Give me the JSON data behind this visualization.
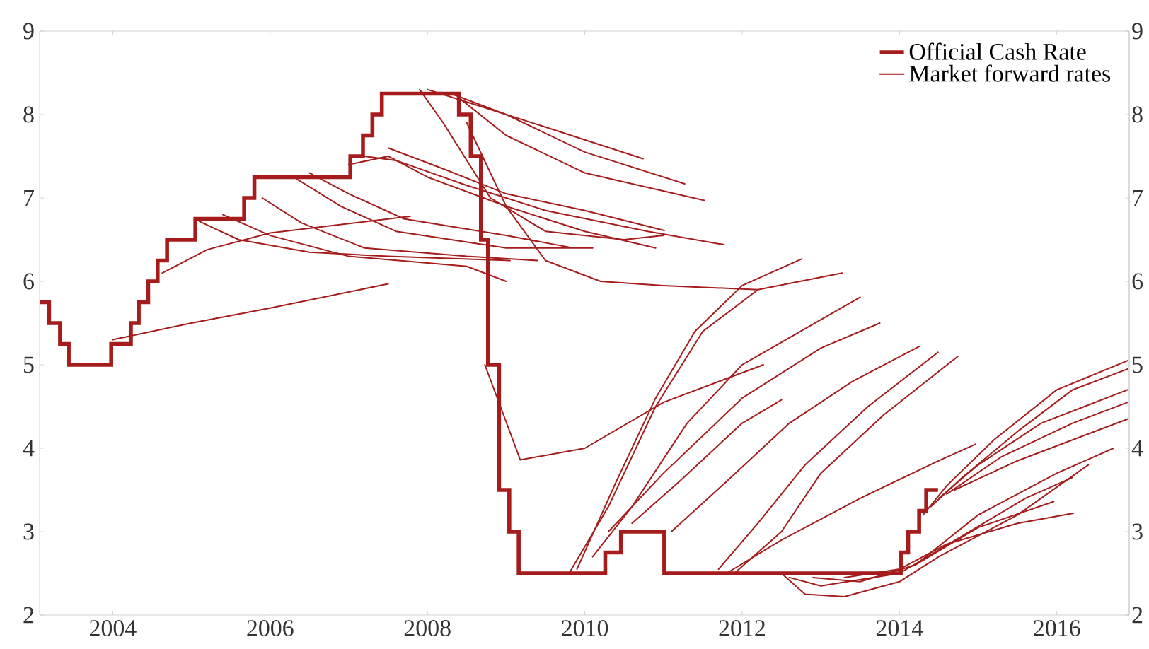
{
  "chart_data": {
    "type": "line",
    "xlim": [
      2003.07,
      2016.92
    ],
    "xticks": [
      2004,
      2006,
      2008,
      2010,
      2012,
      2014,
      2016
    ],
    "ylim": [
      2,
      9
    ],
    "yticks": [
      2,
      3,
      4,
      5,
      6,
      7,
      8,
      9
    ],
    "y2lim": [
      2,
      9
    ],
    "y2ticks": [
      2,
      3,
      4,
      5,
      6,
      7,
      8,
      9
    ],
    "legend": "top right",
    "series": [
      {
        "name": "Official Cash Rate",
        "type": "step",
        "color": "#a51c1c",
        "x": [
          2003.07,
          2003.19,
          2003.33,
          2003.44,
          2003.98,
          2004.23,
          2004.33,
          2004.45,
          2004.57,
          2004.69,
          2005.05,
          2005.67,
          2005.8,
          2007.02,
          2007.18,
          2007.3,
          2007.42,
          2008.4,
          2008.55,
          2008.68,
          2008.77,
          2008.91,
          2009.04,
          2009.16,
          2010.26,
          2010.46,
          2011.01,
          2014.02,
          2014.11,
          2014.25,
          2014.34,
          2014.49
        ],
        "values": [
          5.75,
          5.5,
          5.25,
          5.0,
          5.25,
          5.5,
          5.75,
          6.0,
          6.25,
          6.5,
          6.75,
          7.0,
          7.25,
          7.5,
          7.75,
          8.0,
          8.25,
          8.0,
          7.5,
          6.5,
          5.0,
          3.5,
          3.0,
          2.5,
          2.75,
          3.0,
          2.5,
          2.75,
          3.0,
          3.25,
          3.5,
          3.5
        ]
      },
      {
        "name": "Market forward rates",
        "color": "#a51c1c",
        "x": [
          2004.0,
          2005.0,
          2006.0,
          2007.5
        ],
        "values": [
          5.3,
          5.5,
          5.68,
          5.97
        ]
      },
      {
        "color": "#a51c1c",
        "x": [
          2004.63,
          2005.2,
          2006.0,
          2007.78
        ],
        "values": [
          6.1,
          6.38,
          6.58,
          6.78
        ]
      },
      {
        "color": "#a51c1c",
        "x": [
          2005.1,
          2005.6,
          2006.5,
          2007.5,
          2009.05
        ],
        "values": [
          6.72,
          6.5,
          6.35,
          6.3,
          6.25
        ]
      },
      {
        "color": "#a51c1c",
        "x": [
          2005.4,
          2006.0,
          2007.0,
          2008.5,
          2009.0
        ],
        "values": [
          6.8,
          6.55,
          6.3,
          6.18,
          6.0
        ]
      },
      {
        "color": "#a51c1c",
        "x": [
          2005.9,
          2006.4,
          2007.2,
          2008.5,
          2009.4
        ],
        "values": [
          7.0,
          6.7,
          6.4,
          6.3,
          6.25
        ]
      },
      {
        "color": "#a51c1c",
        "x": [
          2006.3,
          2006.9,
          2007.6,
          2009.0,
          2010.1
        ],
        "values": [
          7.25,
          6.9,
          6.6,
          6.4,
          6.4
        ]
      },
      {
        "color": "#a51c1c",
        "x": [
          2006.5,
          2007.0,
          2007.7,
          2009.0,
          2009.8
        ],
        "values": [
          7.3,
          7.05,
          6.75,
          6.55,
          6.41
        ]
      },
      {
        "color": "#a51c1c",
        "x": [
          2007.0,
          2007.5,
          2008.0,
          2009.0,
          2010.0,
          2010.9
        ],
        "values": [
          7.4,
          7.5,
          7.25,
          6.9,
          6.6,
          6.4
        ]
      },
      {
        "color": "#a51c1c",
        "x": [
          2007.2,
          2007.6,
          2008.5,
          2009.5,
          2010.8,
          2011.77
        ],
        "values": [
          7.5,
          7.45,
          7.15,
          6.85,
          6.6,
          6.44
        ]
      },
      {
        "color": "#a51c1c",
        "x": [
          2007.5,
          2008.2,
          2009.0,
          2010.0,
          2011.01
        ],
        "values": [
          7.6,
          7.35,
          7.05,
          6.85,
          6.61
        ]
      },
      {
        "color": "#a51c1c",
        "x": [
          2007.9,
          2008.2,
          2008.8,
          2009.5,
          2010.5,
          2011.0
        ],
        "values": [
          8.3,
          7.9,
          7.0,
          6.6,
          6.5,
          6.55
        ]
      },
      {
        "color": "#a51c1c",
        "x": [
          2008.0,
          2008.5,
          2009.5,
          2010.74
        ],
        "values": [
          8.3,
          8.15,
          7.85,
          7.47
        ]
      },
      {
        "color": "#a51c1c",
        "x": [
          2008.3,
          2009.0,
          2010.0,
          2011.27
        ],
        "values": [
          8.25,
          8.0,
          7.55,
          7.17
        ]
      },
      {
        "color": "#a51c1c",
        "x": [
          2008.4,
          2009.0,
          2010.0,
          2011.52
        ],
        "values": [
          8.2,
          7.75,
          7.3,
          6.97
        ]
      },
      {
        "color": "#a51c1c",
        "x": [
          2008.5,
          2009.0,
          2009.5,
          2010.2,
          2011.0,
          2012.2
        ],
        "values": [
          7.9,
          6.9,
          6.25,
          6.0,
          5.95,
          5.9
        ]
      },
      {
        "color": "#a51c1c",
        "x": [
          2008.73,
          2009.18,
          2010.0,
          2011.0,
          2012.27
        ],
        "values": [
          5.0,
          3.86,
          4.0,
          4.55,
          5.0
        ]
      },
      {
        "color": "#a51c1c",
        "x": [
          2009.9,
          2010.4,
          2010.9,
          2011.4,
          2012.0,
          2012.76
        ],
        "values": [
          2.55,
          3.6,
          4.6,
          5.4,
          5.95,
          6.27
        ]
      },
      {
        "color": "#a51c1c",
        "x": [
          2009.8,
          2010.3,
          2010.9,
          2011.5,
          2012.2,
          2013.27
        ],
        "values": [
          2.5,
          3.3,
          4.5,
          5.4,
          5.9,
          6.1
        ]
      },
      {
        "color": "#a51c1c",
        "x": [
          2010.1,
          2010.6,
          2011.3,
          2012.0,
          2013.5
        ],
        "values": [
          2.7,
          3.3,
          4.3,
          5.0,
          5.81
        ]
      },
      {
        "color": "#a51c1c",
        "x": [
          2010.3,
          2011.0,
          2012.0,
          2013.0,
          2013.75
        ],
        "values": [
          3.0,
          3.7,
          4.6,
          5.2,
          5.5
        ]
      },
      {
        "color": "#a51c1c",
        "x": [
          2010.6,
          2011.2,
          2012.0,
          2012.5
        ],
        "values": [
          3.1,
          3.6,
          4.3,
          4.58
        ]
      },
      {
        "color": "#a51c1c",
        "x": [
          2011.1,
          2011.8,
          2012.6,
          2013.4,
          2014.25
        ],
        "values": [
          3.0,
          3.6,
          4.3,
          4.8,
          5.22
        ]
      },
      {
        "color": "#a51c1c",
        "x": [
          2011.7,
          2012.2,
          2012.8,
          2013.6,
          2014.49
        ],
        "values": [
          2.55,
          3.1,
          3.8,
          4.5,
          5.15
        ]
      },
      {
        "color": "#a51c1c",
        "x": [
          2011.9,
          2012.5,
          2013.0,
          2013.8,
          2014.74
        ],
        "values": [
          2.5,
          3.0,
          3.7,
          4.4,
          5.1
        ]
      },
      {
        "color": "#a51c1c",
        "x": [
          2011.8,
          2012.5,
          2013.5,
          2014.5,
          2014.97
        ],
        "values": [
          2.5,
          2.9,
          3.4,
          3.85,
          4.05
        ]
      },
      {
        "color": "#a51c1c",
        "x": [
          2012.5,
          2012.8,
          2013.3,
          2014.0,
          2014.5,
          2015.5,
          2016.4
        ],
        "values": [
          2.5,
          2.25,
          2.22,
          2.4,
          2.7,
          3.2,
          3.8
        ]
      },
      {
        "color": "#a51c1c",
        "x": [
          2012.6,
          2013.0,
          2014.0,
          2014.8,
          2015.6,
          2016.2
        ],
        "values": [
          2.45,
          2.35,
          2.5,
          2.95,
          3.4,
          3.65
        ]
      },
      {
        "color": "#a51c1c",
        "x": [
          2012.9,
          2013.5,
          2014.2,
          2015.0,
          2015.96
        ],
        "values": [
          2.45,
          2.4,
          2.6,
          3.05,
          3.36
        ]
      },
      {
        "color": "#a51c1c",
        "x": [
          2013.3,
          2014.0,
          2014.6,
          2015.5,
          2016.21
        ],
        "values": [
          2.45,
          2.55,
          2.85,
          3.1,
          3.22
        ]
      },
      {
        "color": "#a51c1c",
        "x": [
          2014.2,
          2015.0,
          2016.0,
          2016.72
        ],
        "values": [
          2.6,
          3.2,
          3.7,
          4.0
        ]
      },
      {
        "color": "#a51c1c",
        "x": [
          2014.3,
          2014.6,
          2015.2,
          2016.0,
          2016.9
        ],
        "values": [
          3.2,
          3.55,
          4.1,
          4.7,
          5.05
        ]
      },
      {
        "color": "#a51c1c",
        "x": [
          2014.4,
          2014.8,
          2015.5,
          2016.2,
          2016.9
        ],
        "values": [
          3.3,
          3.65,
          4.2,
          4.7,
          4.95
        ]
      },
      {
        "color": "#a51c1c",
        "x": [
          2014.5,
          2015.0,
          2015.8,
          2016.9
        ],
        "values": [
          3.4,
          3.8,
          4.3,
          4.7
        ]
      },
      {
        "color": "#a51c1c",
        "x": [
          2014.6,
          2015.3,
          2016.2,
          2016.9
        ],
        "values": [
          3.45,
          3.9,
          4.3,
          4.55
        ]
      },
      {
        "color": "#a51c1c",
        "x": [
          2014.7,
          2015.5,
          2016.2,
          2016.9
        ],
        "values": [
          3.5,
          3.85,
          4.1,
          4.35
        ]
      }
    ]
  }
}
